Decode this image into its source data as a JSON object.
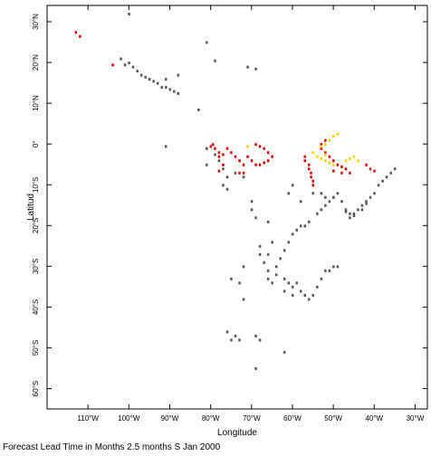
{
  "chart_data": {
    "type": "scatter",
    "title": "",
    "xlabel": "Longitude",
    "ylabel": "Latitud",
    "caption": "Forecast Lead Time in Months 2.5 months S Jan 2000",
    "xlim": [
      -120,
      -27
    ],
    "ylim": [
      -65,
      34
    ],
    "grid": false,
    "x_ticks": [
      {
        "value": -110,
        "label": "110°W"
      },
      {
        "value": -100,
        "label": "100°W"
      },
      {
        "value": -90,
        "label": "90°W"
      },
      {
        "value": -80,
        "label": "80°W"
      },
      {
        "value": -70,
        "label": "70°W"
      },
      {
        "value": -60,
        "label": "60°W"
      },
      {
        "value": -50,
        "label": "50°W"
      },
      {
        "value": -40,
        "label": "40°W"
      },
      {
        "value": -30,
        "label": "30°W"
      }
    ],
    "y_ticks": [
      {
        "value": 30,
        "label": "30°N"
      },
      {
        "value": 20,
        "label": "20°N"
      },
      {
        "value": 10,
        "label": "10°N"
      },
      {
        "value": 0,
        "label": "0°"
      },
      {
        "value": -10,
        "label": "10°S"
      },
      {
        "value": -20,
        "label": "20°S"
      },
      {
        "value": -30,
        "label": "30°S"
      },
      {
        "value": -40,
        "label": "40°S"
      },
      {
        "value": -50,
        "label": "50°S"
      },
      {
        "value": -60,
        "label": "60°S"
      }
    ],
    "colors": {
      "gray": "#555555",
      "red": "#e00000",
      "yellow": "#ffd200"
    },
    "series": [
      {
        "color": "gray",
        "points": [
          [
            -100,
            32
          ],
          [
            -81,
            25
          ],
          [
            -79,
            20.5
          ],
          [
            -71,
            19
          ],
          [
            -69,
            18.5
          ],
          [
            -102,
            21
          ],
          [
            -101,
            19.5
          ],
          [
            -100,
            20
          ],
          [
            -99,
            19
          ],
          [
            -98,
            18
          ],
          [
            -97,
            17
          ],
          [
            -96,
            16.5
          ],
          [
            -95,
            16
          ],
          [
            -94,
            15.5
          ],
          [
            -93,
            15
          ],
          [
            -92,
            14
          ],
          [
            -91,
            14
          ],
          [
            -90,
            13.5
          ],
          [
            -89,
            13
          ],
          [
            -88,
            12.5
          ],
          [
            -91,
            16
          ],
          [
            -88,
            17
          ],
          [
            -83,
            8.5
          ],
          [
            -91,
            -0.5
          ],
          [
            -81,
            -1
          ],
          [
            -79,
            -2.5
          ],
          [
            -78,
            -4
          ],
          [
            -77,
            -6
          ],
          [
            -76,
            -8
          ],
          [
            -77,
            -10
          ],
          [
            -76,
            -11
          ],
          [
            -81,
            -5
          ],
          [
            -74,
            -7
          ],
          [
            -72,
            -8
          ],
          [
            -70,
            -14
          ],
          [
            -70,
            -16
          ],
          [
            -69,
            -18
          ],
          [
            -66,
            -19
          ],
          [
            -68,
            -25
          ],
          [
            -68,
            -27
          ],
          [
            -67,
            -29
          ],
          [
            -66,
            -31
          ],
          [
            -66,
            -33
          ],
          [
            -65,
            -34
          ],
          [
            -64,
            -30
          ],
          [
            -63,
            -28
          ],
          [
            -62,
            -26
          ],
          [
            -61,
            -24
          ],
          [
            -60,
            -22
          ],
          [
            -59,
            -21
          ],
          [
            -58,
            -20
          ],
          [
            -57,
            -20
          ],
          [
            -56,
            -19
          ],
          [
            -54,
            -17
          ],
          [
            -53,
            -16
          ],
          [
            -52,
            -15
          ],
          [
            -51,
            -14
          ],
          [
            -50,
            -13
          ],
          [
            -49,
            -12
          ],
          [
            -48,
            -14
          ],
          [
            -47,
            -16
          ],
          [
            -46,
            -17
          ],
          [
            -45,
            -17
          ],
          [
            -44,
            -16
          ],
          [
            -43,
            -15
          ],
          [
            -42,
            -14
          ],
          [
            -41,
            -13
          ],
          [
            -40,
            -12
          ],
          [
            -38,
            -9
          ],
          [
            -37,
            -8
          ],
          [
            -36,
            -7
          ],
          [
            -35,
            -6
          ],
          [
            -39,
            -10
          ],
          [
            -55,
            -12
          ],
          [
            -53,
            -12
          ],
          [
            -52,
            -13
          ],
          [
            -50,
            -13
          ],
          [
            -47,
            -16.5
          ],
          [
            -46,
            -18
          ],
          [
            -45,
            -17.5
          ],
          [
            -43,
            -16
          ],
          [
            -42,
            -14.5
          ],
          [
            -60,
            -10
          ],
          [
            -61,
            -12
          ],
          [
            -58,
            -14
          ],
          [
            -64,
            -32
          ],
          [
            -62,
            -33
          ],
          [
            -61,
            -34
          ],
          [
            -60,
            -35
          ],
          [
            -59,
            -34
          ],
          [
            -58,
            -36
          ],
          [
            -57,
            -37
          ],
          [
            -56,
            -38
          ],
          [
            -55,
            -37
          ],
          [
            -54,
            -35
          ],
          [
            -53,
            -33
          ],
          [
            -52,
            -31
          ],
          [
            -51,
            -31
          ],
          [
            -50,
            -30
          ],
          [
            -49,
            -30
          ],
          [
            -65,
            -24
          ],
          [
            -66,
            -27
          ],
          [
            -62,
            -36
          ],
          [
            -60,
            -37
          ],
          [
            -72,
            -30
          ],
          [
            -73,
            -34
          ],
          [
            -72,
            -38
          ],
          [
            -75,
            -33
          ],
          [
            -76,
            -46
          ],
          [
            -75,
            -48
          ],
          [
            -74,
            -47
          ],
          [
            -73,
            -48
          ],
          [
            -69,
            -47
          ],
          [
            -68,
            -48
          ],
          [
            -69,
            -55
          ],
          [
            -62,
            -51
          ]
        ]
      },
      {
        "color": "red",
        "points": [
          [
            -113,
            27.5
          ],
          [
            -112,
            26.5
          ],
          [
            -104,
            19.5
          ],
          [
            -80,
            -0.5
          ],
          [
            -79.5,
            0
          ],
          [
            -79,
            -1
          ],
          [
            -78,
            -2
          ],
          [
            -77,
            -2.5
          ],
          [
            -78,
            -3
          ],
          [
            -77,
            -5
          ],
          [
            -78,
            -6.5
          ],
          [
            -76,
            -1
          ],
          [
            -75,
            -2
          ],
          [
            -74,
            -3
          ],
          [
            -73,
            -4
          ],
          [
            -72,
            -5
          ],
          [
            -72,
            -7
          ],
          [
            -73,
            -7
          ],
          [
            -69,
            0
          ],
          [
            -68,
            -0.5
          ],
          [
            -67,
            -1
          ],
          [
            -66,
            -2
          ],
          [
            -65,
            -3
          ],
          [
            -66,
            -4
          ],
          [
            -67,
            -4.5
          ],
          [
            -68,
            -5
          ],
          [
            -71,
            -3
          ],
          [
            -70,
            -4
          ],
          [
            -69,
            -5
          ],
          [
            -57,
            -3
          ],
          [
            -57,
            -4
          ],
          [
            -56,
            -5
          ],
          [
            -56,
            -6
          ],
          [
            -55.5,
            -7
          ],
          [
            -55.5,
            -8
          ],
          [
            -55,
            -9
          ],
          [
            -55,
            -10
          ],
          [
            -53,
            -1
          ],
          [
            -52,
            -2
          ],
          [
            -51,
            -3
          ],
          [
            -50,
            -4
          ],
          [
            -49,
            -5
          ],
          [
            -48,
            -5.5
          ],
          [
            -47,
            -6
          ],
          [
            -46,
            -7
          ],
          [
            -50,
            -6.5
          ],
          [
            -48,
            -7
          ],
          [
            -42,
            -5
          ],
          [
            -41,
            -6
          ],
          [
            -40,
            -6.5
          ],
          [
            -53,
            0
          ],
          [
            -52,
            1
          ]
        ]
      },
      {
        "color": "yellow",
        "points": [
          [
            -53,
            -0.5
          ],
          [
            -52,
            0
          ],
          [
            -51,
            1
          ],
          [
            -50,
            2
          ],
          [
            -49,
            2.5
          ],
          [
            -55,
            -2
          ],
          [
            -54,
            -3
          ],
          [
            -53,
            -3.5
          ],
          [
            -52,
            -4
          ],
          [
            -51,
            -4.5
          ],
          [
            -50,
            -5
          ],
          [
            -47,
            -4
          ],
          [
            -46,
            -3.5
          ],
          [
            -45,
            -3
          ],
          [
            -44,
            -4
          ],
          [
            -52,
            -2.5
          ],
          [
            -71,
            -0.5
          ]
        ]
      }
    ]
  }
}
